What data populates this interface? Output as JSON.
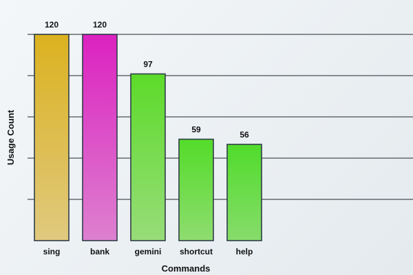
{
  "chart_data": {
    "type": "bar",
    "title": "",
    "xlabel": "Commands",
    "ylabel": "Usage Count",
    "categories": [
      "sing",
      "bank",
      "gemini",
      "shortcut",
      "help"
    ],
    "values": [
      120,
      120,
      97,
      59,
      56
    ],
    "ylim": [
      0,
      120
    ],
    "y_gridlines": [
      24,
      48,
      72,
      96,
      120
    ],
    "y_tick_labels_shown": false,
    "grid": true,
    "legend": "none",
    "bar_colors": [
      {
        "top": "#dbb21f",
        "bottom": "#e0c97f"
      },
      {
        "top": "#dc22c0",
        "bottom": "#dd80cf"
      },
      {
        "top": "#5cdb2a",
        "bottom": "#98dc79"
      },
      {
        "top": "#53dc29",
        "bottom": "#8fdc70"
      },
      {
        "top": "#50dc2b",
        "bottom": "#87dc6b"
      }
    ],
    "bar_border_color": "#2f3d48",
    "gridline_color": "#4a4f55"
  }
}
